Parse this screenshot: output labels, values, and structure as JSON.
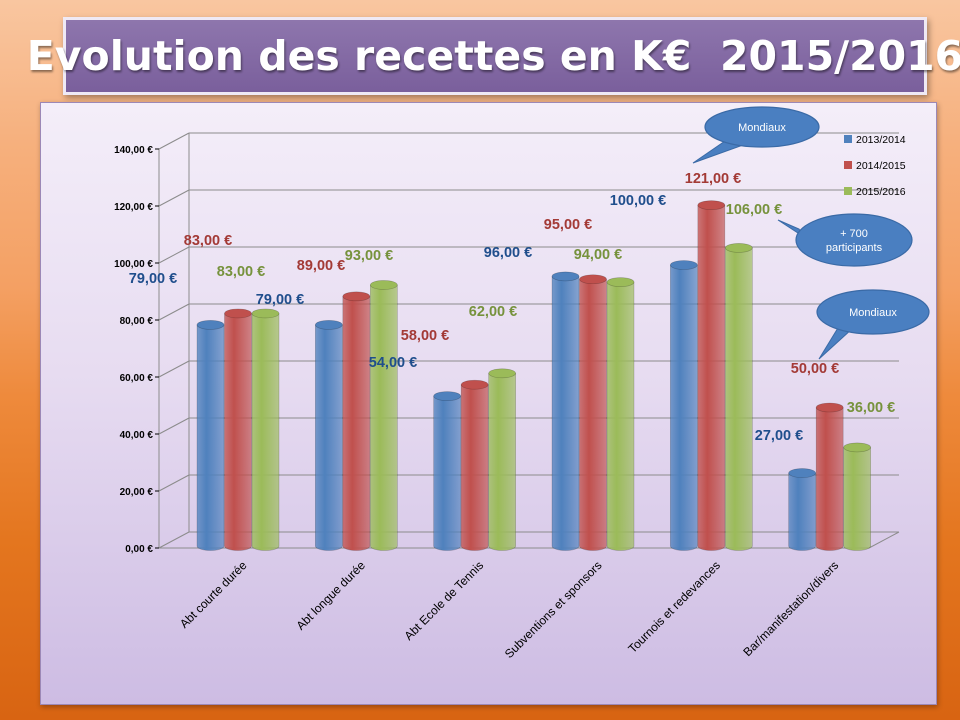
{
  "title": "Evolution des recettes en K€  2015/2016",
  "colors": {
    "blue": "#4f81bd",
    "red": "#c0504d",
    "green": "#9bbb59",
    "callout": "#4a7fc1"
  },
  "chart_data": {
    "type": "bar",
    "title": "Evolution des recettes en K€  2015/2016",
    "xlabel": "",
    "ylabel": "",
    "ylim": [
      0,
      140
    ],
    "grid": true,
    "legend_position": "top-right",
    "yticks": [
      {
        "value": 0,
        "label": "0,00 €"
      },
      {
        "value": 20,
        "label": "20,00 €"
      },
      {
        "value": 40,
        "label": "40,00 €"
      },
      {
        "value": 60,
        "label": "60,00 €"
      },
      {
        "value": 80,
        "label": "80,00 €"
      },
      {
        "value": 100,
        "label": "100,00 €"
      },
      {
        "value": 120,
        "label": "120,00 €"
      },
      {
        "value": 140,
        "label": "140,00 €"
      }
    ],
    "categories": [
      "Abt courte durée",
      "Abt longue durée",
      "Abt Ecole de Tennis",
      "Subventions et sponsors",
      "Tournois et redevances",
      "Bar/manifestation/divers"
    ],
    "series": [
      {
        "name": "2013/2014",
        "color": "#4f81bd",
        "label_color": "#1f4e8c",
        "values": [
          79,
          79,
          54,
          96,
          100,
          27
        ],
        "labels": [
          "79,00 €",
          "79,00 €",
          "54,00 €",
          "96,00 €",
          "100,00 €",
          "27,00 €"
        ]
      },
      {
        "name": "2014/2015",
        "color": "#c0504d",
        "label_color": "#a33a36",
        "values": [
          83,
          89,
          58,
          95,
          121,
          50
        ],
        "labels": [
          "83,00 €",
          "89,00 €",
          "58,00 €",
          "95,00 €",
          "121,00 €",
          "50,00 €"
        ]
      },
      {
        "name": "2015/2016",
        "color": "#9bbb59",
        "label_color": "#76923c",
        "values": [
          83,
          93,
          62,
          94,
          106,
          36
        ],
        "labels": [
          "83,00 €",
          "93,00 €",
          "62,00 €",
          "94,00 €",
          "106,00 €",
          "36,00 €"
        ]
      }
    ],
    "annotations": [
      {
        "id": "mondiaux-1",
        "lines": [
          "Mondiaux"
        ],
        "target": "Tournois et redevances / 2014/2015"
      },
      {
        "id": "participants",
        "lines": [
          "+ 700",
          "participants"
        ],
        "target": "Tournois et redevances / 2015/2016"
      },
      {
        "id": "mondiaux-2",
        "lines": [
          "Mondiaux"
        ],
        "target": "Bar/manifestation/divers / 2014/2015"
      }
    ]
  }
}
